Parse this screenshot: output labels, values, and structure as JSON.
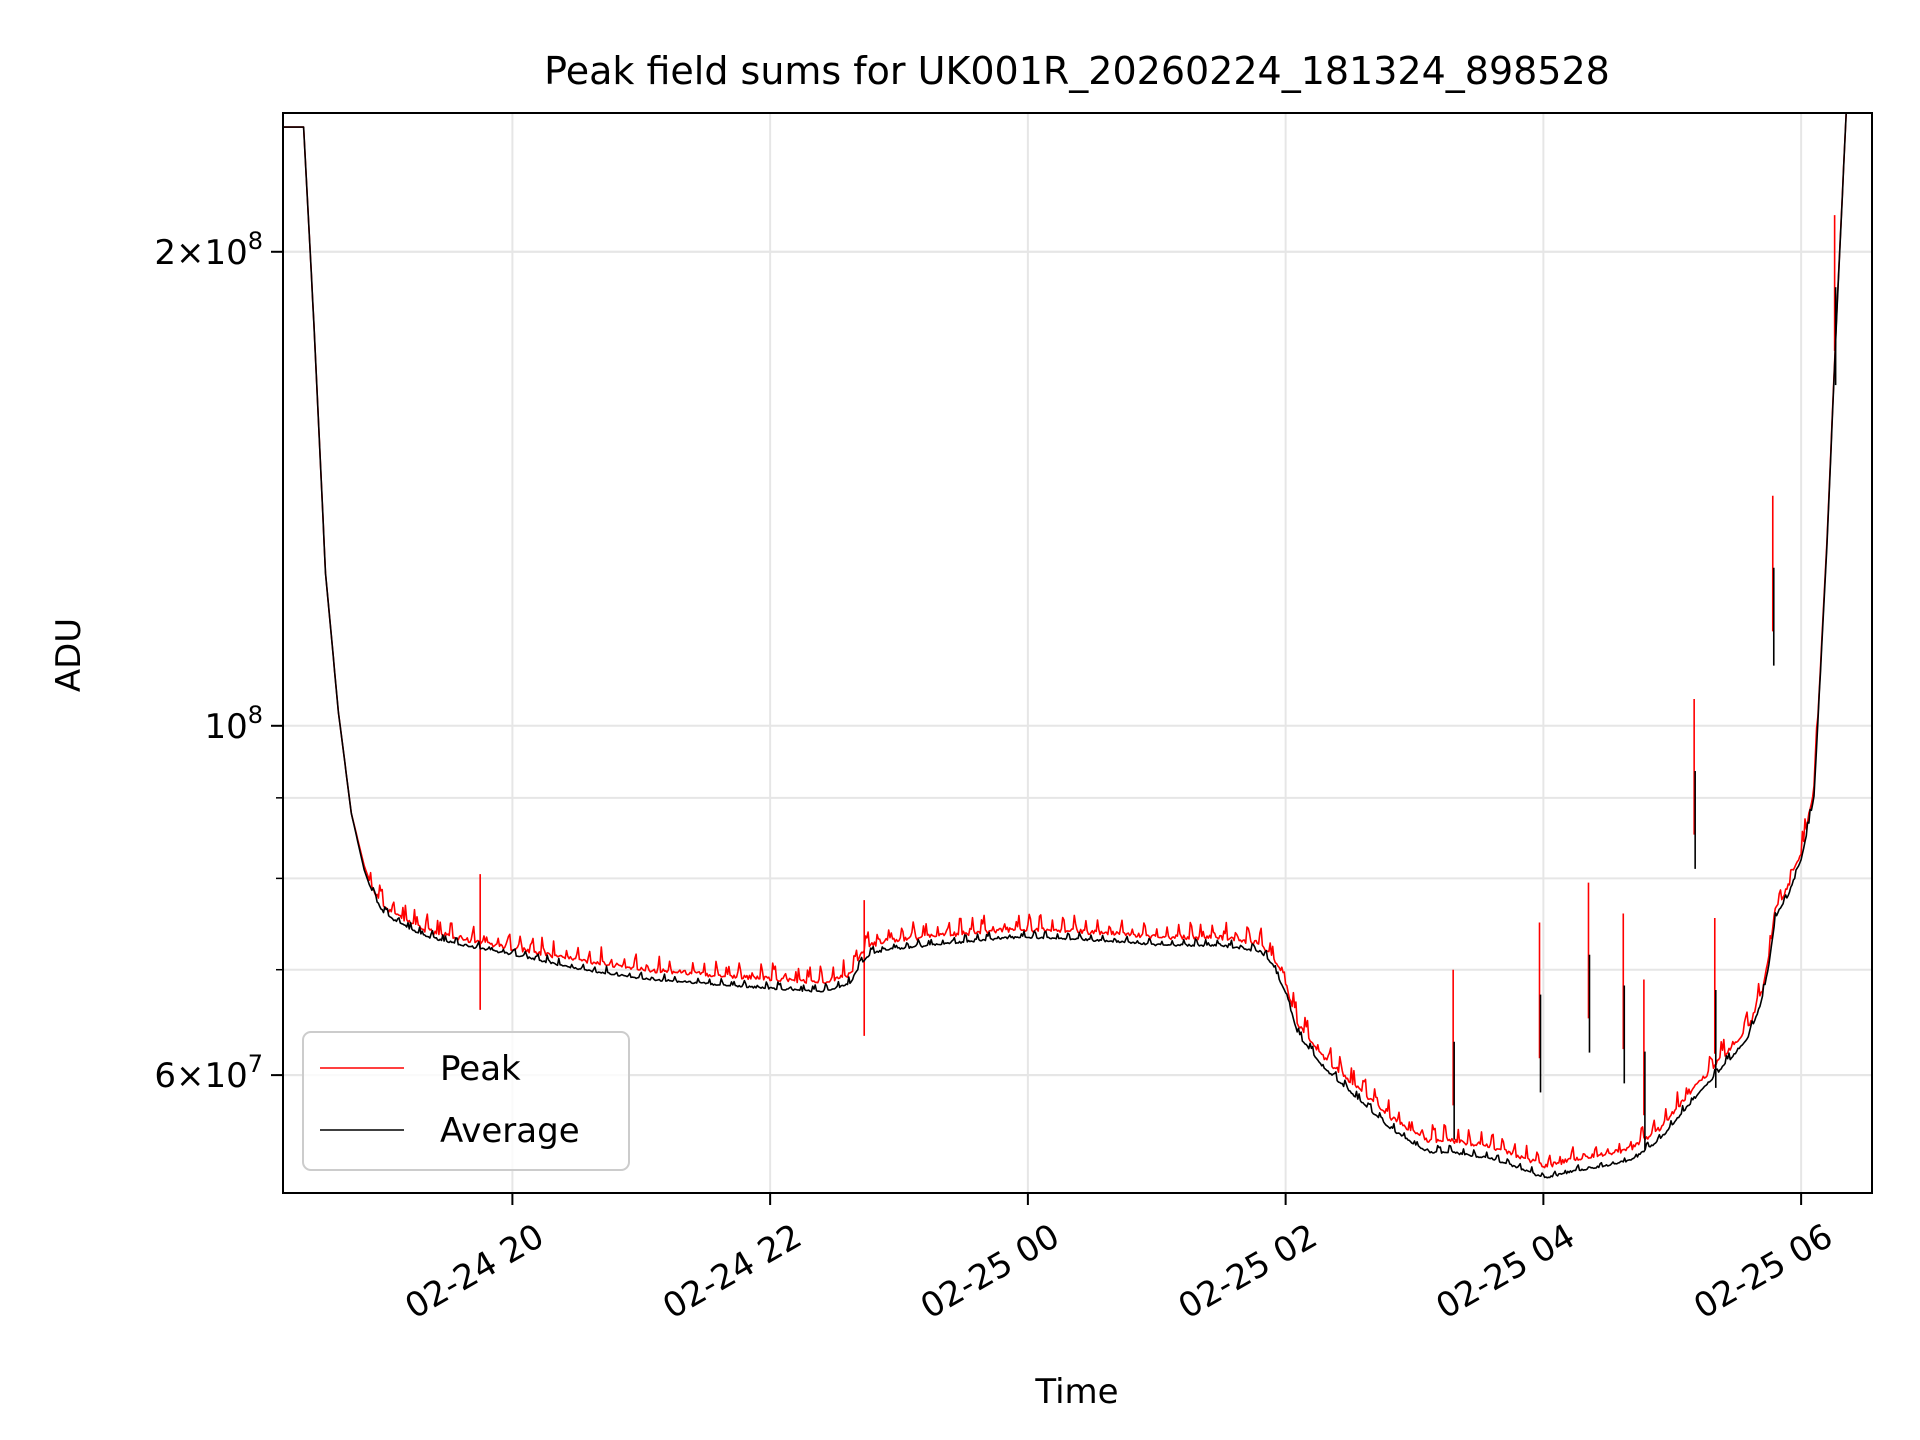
{
  "chart_data": {
    "type": "line",
    "title": "Peak field sums for UK001R_20260224_181324_898528",
    "xlabel": "Time",
    "ylabel": "ADU",
    "x_unit": "hours since 2026-02-24 00:00",
    "xlim": [
      18.22,
      30.55
    ],
    "ylim": [
      50500000,
      245000000
    ],
    "y_scale": "log",
    "x_ticks": [
      {
        "value": 20,
        "label": "02-24 20"
      },
      {
        "value": 22,
        "label": "02-24 22"
      },
      {
        "value": 24,
        "label": "02-25 00"
      },
      {
        "value": 26,
        "label": "02-25 02"
      },
      {
        "value": 28,
        "label": "02-25 04"
      },
      {
        "value": 30,
        "label": "02-25 06"
      }
    ],
    "y_major_ticks": [
      {
        "value": 100000000,
        "base": "10",
        "exp": "8"
      },
      {
        "value": 200000000,
        "mant": "2",
        "base": "10",
        "exp": "8"
      },
      {
        "value": 60000000,
        "mant": "6",
        "base": "10",
        "exp": "7"
      }
    ],
    "y_minor_ticks": [
      60000000,
      70000000,
      80000000,
      90000000,
      200000000
    ],
    "grid": true,
    "legend": {
      "position": "lower-left",
      "entries": [
        {
          "label": "Peak",
          "color": "#ff0000"
        },
        {
          "label": "Average",
          "color": "#000000"
        }
      ]
    },
    "series": [
      {
        "name": "Average",
        "color": "#000000",
        "x": [
          18.22,
          18.38,
          18.46,
          18.55,
          18.65,
          18.75,
          18.85,
          18.92,
          19.0,
          19.1,
          19.3,
          19.6,
          20.0,
          20.5,
          21.0,
          21.5,
          22.0,
          22.4,
          22.62,
          22.7,
          22.78,
          22.9,
          23.3,
          23.8,
          24.0,
          24.5,
          25.0,
          25.5,
          25.8,
          25.9,
          26.0,
          26.1,
          26.3,
          26.5,
          26.8,
          27.1,
          27.3,
          27.6,
          27.9,
          28.0,
          28.2,
          28.5,
          28.7,
          28.9,
          29.1,
          29.3,
          29.5,
          29.6,
          29.7,
          29.75,
          29.8,
          29.9,
          30.0,
          30.1,
          30.2,
          30.28,
          30.35
        ],
        "y": [
          240000000,
          240000000,
          180000000,
          125000000,
          102000000,
          88000000,
          81000000,
          78000000,
          76000000,
          75000000,
          73500000,
          72500000,
          71500000,
          70000000,
          69000000,
          68500000,
          68000000,
          67700000,
          68500000,
          70500000,
          71500000,
          72000000,
          72500000,
          73200000,
          73300000,
          73000000,
          72500000,
          72400000,
          71800000,
          70500000,
          67500000,
          63500000,
          60500000,
          58500000,
          55500000,
          53500000,
          53500000,
          53000000,
          52000000,
          51500000,
          52000000,
          52500000,
          53000000,
          54500000,
          57000000,
          59500000,
          62000000,
          63500000,
          67000000,
          70500000,
          75500000,
          78000000,
          82000000,
          90000000,
          130000000,
          185000000,
          245000000
        ]
      },
      {
        "name": "Peak",
        "color": "#ff0000",
        "x": [
          18.22,
          18.38,
          18.46,
          18.55,
          18.65,
          18.75,
          18.85,
          18.92,
          19.0,
          19.1,
          19.3,
          19.6,
          20.0,
          20.5,
          21.0,
          21.5,
          22.0,
          22.4,
          22.62,
          22.7,
          22.78,
          22.9,
          23.3,
          23.8,
          24.0,
          24.5,
          25.0,
          25.5,
          25.8,
          25.9,
          26.0,
          26.1,
          26.3,
          26.5,
          26.8,
          27.1,
          27.3,
          27.6,
          27.9,
          28.0,
          28.2,
          28.5,
          28.7,
          28.9,
          29.1,
          29.3,
          29.5,
          29.6,
          29.7,
          29.75,
          29.8,
          29.9,
          30.0,
          30.1,
          30.2,
          30.28,
          30.35
        ],
        "y": [
          240000000,
          240000000,
          180000000,
          125000000,
          102000000,
          88000000,
          81500000,
          78500000,
          76500000,
          75500000,
          74000000,
          73000000,
          72000000,
          70800000,
          69800000,
          69300000,
          68800000,
          68500000,
          69300000,
          71300000,
          72300000,
          72800000,
          73300000,
          73900000,
          74000000,
          73700000,
          73200000,
          73100000,
          72500000,
          71300000,
          68300000,
          64300000,
          61300000,
          59300000,
          56300000,
          54300000,
          54300000,
          53800000,
          52800000,
          52300000,
          52800000,
          53300000,
          53800000,
          55300000,
          57800000,
          60300000,
          62800000,
          64300000,
          67800000,
          71300000,
          76300000,
          78800000,
          82800000,
          90800000,
          130800000,
          185800000,
          245000000
        ],
        "spikes": [
          {
            "x": 19.75,
            "y": 80500000
          },
          {
            "x": 22.73,
            "y": 77500000
          },
          {
            "x": 27.3,
            "y": 70000000
          },
          {
            "x": 27.97,
            "y": 75000000
          },
          {
            "x": 28.35,
            "y": 79500000
          },
          {
            "x": 28.62,
            "y": 76000000
          },
          {
            "x": 28.78,
            "y": 69000000
          },
          {
            "x": 29.17,
            "y": 104000000
          },
          {
            "x": 29.33,
            "y": 75500000
          },
          {
            "x": 29.78,
            "y": 140000000
          },
          {
            "x": 30.26,
            "y": 211000000
          }
        ]
      }
    ]
  }
}
